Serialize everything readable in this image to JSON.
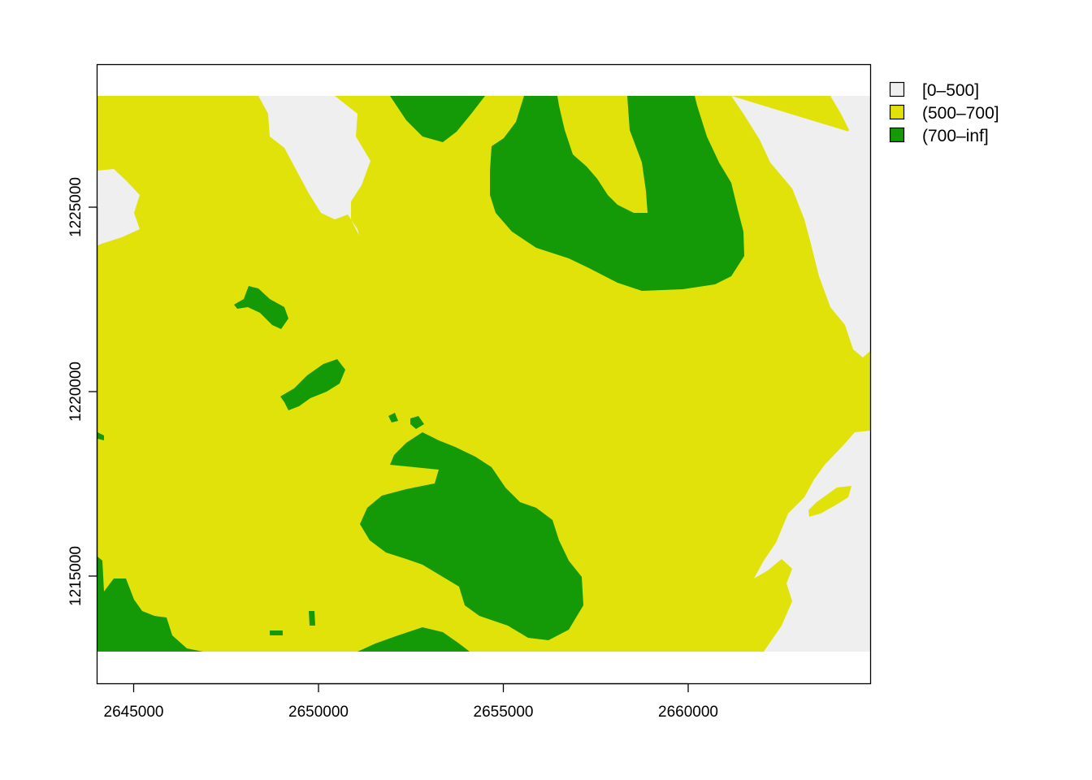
{
  "map": {
    "type": "categorical-raster",
    "colors": {
      "class_low": "#EFEFEF",
      "class_mid": "#E0E20A",
      "class_high": "#149A06",
      "frame": "#000000"
    },
    "x_axis": {
      "ticks": [
        2645000,
        2650000,
        2655000,
        2660000
      ],
      "labels": [
        "2645000",
        "2650000",
        "2655000",
        "2660000"
      ]
    },
    "y_axis": {
      "ticks": [
        1215000,
        1220000,
        1225000
      ],
      "labels": [
        "1215000",
        "1220000",
        "1225000"
      ]
    },
    "legend": {
      "placement": "right-top",
      "items": [
        {
          "label": "[0–500]",
          "color": "#EFEFEF"
        },
        {
          "label": "(500–700]",
          "color": "#E0E20A"
        },
        {
          "label": "(700–inf]",
          "color": "#149A06"
        }
      ]
    }
  }
}
